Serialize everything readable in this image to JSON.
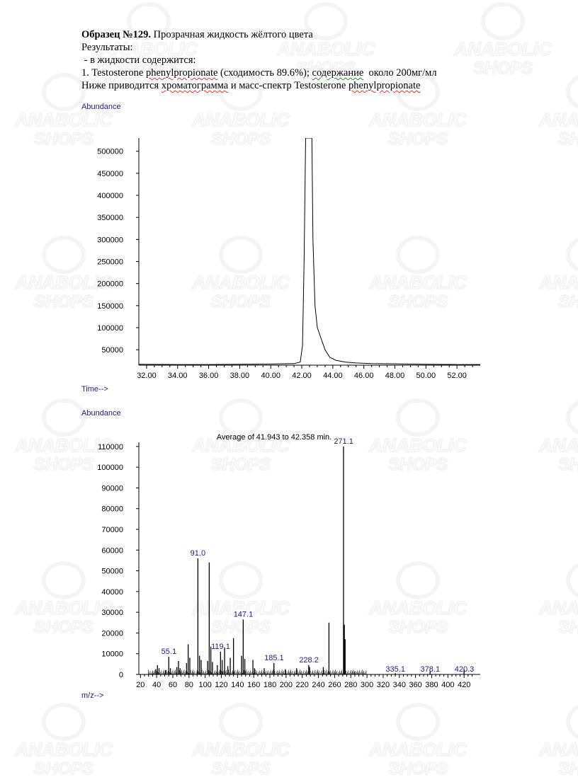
{
  "document": {
    "title_bold": "Образец №129.",
    "title_rest": " Прозрачная жидкость жёлтого цвета",
    "line2": "Результаты:",
    "line3": " - в жидкости содержится:",
    "line4_prefix": "1. Testosterone ",
    "line4_word": "phenylpropionate",
    "line4_mid": " (сходимость 89.6%); ",
    "line4_word2": "содержание",
    "line4_suffix": "  около 200мг/мл",
    "line5_prefix": "Ниже приводится ",
    "line5_word": "хроматограмма",
    "line5_mid": " и масс-спектр Testosterone ",
    "line5_word2": "phenylpropionate"
  },
  "watermark": {
    "text_line1": "ANABOLIC",
    "text_line2": "SHOPS",
    "icon": "bodybuilder-logo"
  },
  "colors": {
    "axis_label": "#1a1a8c",
    "trace": "#000000",
    "watermark": "#9a9a9a"
  },
  "chart_data": [
    {
      "type": "line",
      "name": "chromatogram",
      "ylabel": "Abundance",
      "xlabel": "Time-->",
      "xlim": [
        31.5,
        53.5
      ],
      "ylim": [
        15000,
        530000
      ],
      "xticks": [
        "32.00",
        "34.00",
        "36.00",
        "38.00",
        "40.00",
        "42.00",
        "44.00",
        "46.00",
        "48.00",
        "50.00",
        "52.00"
      ],
      "yticks": [
        "50000",
        "100000",
        "150000",
        "200000",
        "250000",
        "300000",
        "350000",
        "400000",
        "450000",
        "500000"
      ],
      "points": [
        [
          31.5,
          17000
        ],
        [
          34,
          16500
        ],
        [
          36,
          16500
        ],
        [
          38,
          17000
        ],
        [
          40,
          17500
        ],
        [
          41.5,
          18500
        ],
        [
          41.9,
          22000
        ],
        [
          42.05,
          60000
        ],
        [
          42.15,
          250000
        ],
        [
          42.25,
          530000
        ],
        [
          42.65,
          530000
        ],
        [
          42.72,
          300000
        ],
        [
          42.85,
          150000
        ],
        [
          43.0,
          100000
        ],
        [
          43.2,
          80000
        ],
        [
          43.5,
          50000
        ],
        [
          43.8,
          33000
        ],
        [
          44.2,
          26000
        ],
        [
          44.8,
          22000
        ],
        [
          45.5,
          20000
        ],
        [
          46.5,
          18500
        ],
        [
          48,
          18000
        ],
        [
          50,
          17000
        ],
        [
          52,
          16500
        ],
        [
          53.5,
          16500
        ]
      ]
    },
    {
      "type": "bar",
      "name": "mass-spectrum",
      "ylabel": "Abundance",
      "xlabel": "m/z-->",
      "title": "Average of 41.943 to 42.358 min.",
      "xlim": [
        18,
        440
      ],
      "ylim": [
        0,
        112000
      ],
      "xticks": [
        "20",
        "40",
        "60",
        "80",
        "100",
        "120",
        "140",
        "160",
        "180",
        "200",
        "220",
        "240",
        "260",
        "280",
        "300",
        "320",
        "340",
        "360",
        "380",
        "400",
        "420"
      ],
      "yticks": [
        "0",
        "10000",
        "20000",
        "30000",
        "40000",
        "50000",
        "60000",
        "70000",
        "80000",
        "90000",
        "100000",
        "110000"
      ],
      "peaks": [
        [
          39,
          2500
        ],
        [
          41,
          4500
        ],
        [
          43,
          3000
        ],
        [
          51,
          2000
        ],
        [
          55,
          8500
        ],
        [
          57,
          3000
        ],
        [
          65,
          3500
        ],
        [
          67,
          6500
        ],
        [
          69,
          3000
        ],
        [
          77,
          5500
        ],
        [
          79,
          14500
        ],
        [
          81,
          8000
        ],
        [
          91,
          56000
        ],
        [
          93,
          9000
        ],
        [
          95,
          7000
        ],
        [
          103,
          6500
        ],
        [
          105,
          54000
        ],
        [
          107,
          13500
        ],
        [
          109,
          6000
        ],
        [
          115,
          4500
        ],
        [
          119,
          11000
        ],
        [
          121,
          7000
        ],
        [
          124,
          13000
        ],
        [
          128,
          4000
        ],
        [
          131,
          8000
        ],
        [
          135,
          17500
        ],
        [
          145,
          9000
        ],
        [
          147,
          26500
        ],
        [
          149,
          7500
        ],
        [
          159,
          7000
        ],
        [
          161,
          3000
        ],
        [
          173,
          3000
        ],
        [
          185,
          5500
        ],
        [
          199,
          2500
        ],
        [
          213,
          3000
        ],
        [
          228,
          4500
        ],
        [
          229,
          3500
        ],
        [
          246,
          3500
        ],
        [
          253,
          25000
        ],
        [
          271,
          110000
        ],
        [
          272,
          24000
        ],
        [
          273,
          17000
        ],
        [
          285,
          1500
        ],
        [
          335,
          600
        ],
        [
          378,
          1500
        ],
        [
          420,
          2500
        ]
      ],
      "peak_labels": [
        {
          "mz": "55.1",
          "at": 55.1,
          "y": 8500
        },
        {
          "mz": "91.0",
          "at": 91.0,
          "y": 56000
        },
        {
          "mz": "119.1",
          "at": 119.1,
          "y": 11000
        },
        {
          "mz": "147.1",
          "at": 147.1,
          "y": 26500
        },
        {
          "mz": "185.1",
          "at": 185.1,
          "y": 5500
        },
        {
          "mz": "228.2",
          "at": 228.2,
          "y": 4500
        },
        {
          "mz": "271.1",
          "at": 271.1,
          "y": 110000
        },
        {
          "mz": "335.1",
          "at": 335.1,
          "y": 600
        },
        {
          "mz": "378.1",
          "at": 378.1,
          "y": 1500
        },
        {
          "mz": "420.3",
          "at": 420.3,
          "y": 2500
        }
      ]
    }
  ]
}
